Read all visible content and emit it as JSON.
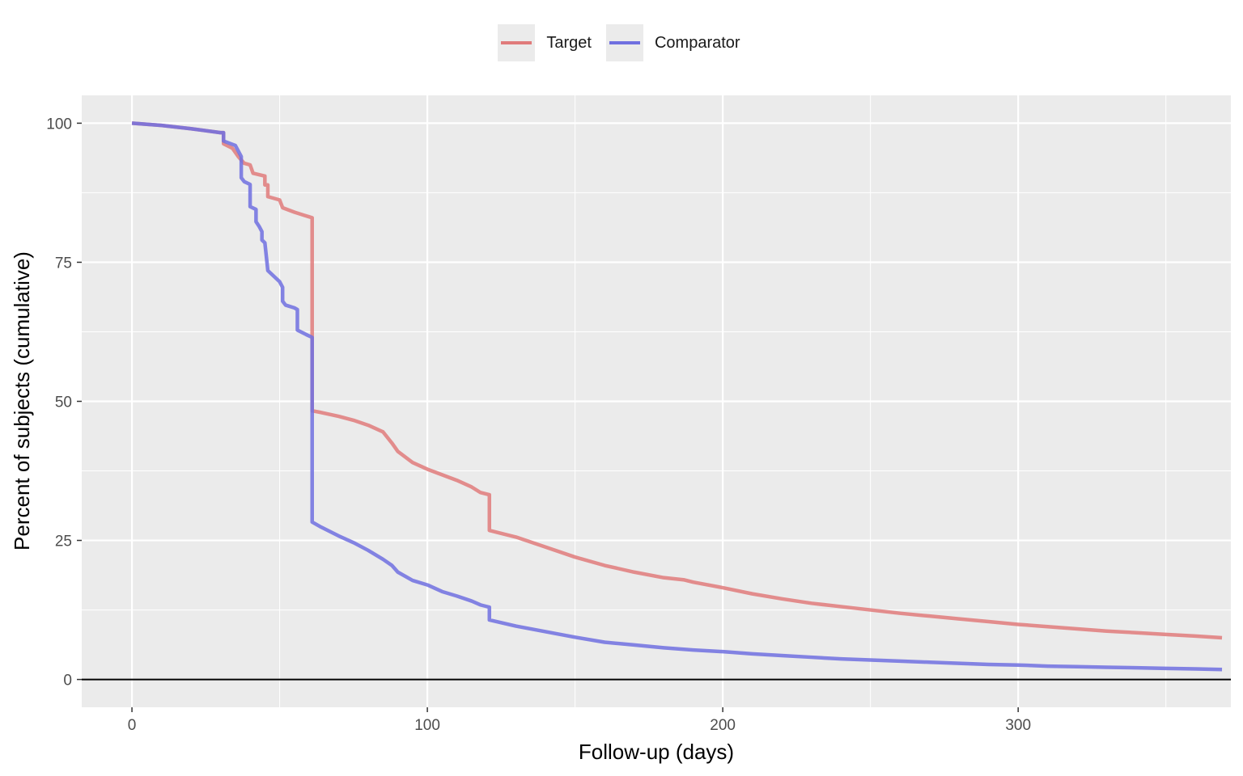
{
  "chart_data": {
    "type": "line",
    "title": "",
    "xlabel": "Follow-up (days)",
    "ylabel": "Percent of subjects (cumulative)",
    "xlim": [
      -17,
      372
    ],
    "ylim": [
      -5,
      105
    ],
    "xticks": [
      0,
      100,
      200,
      300
    ],
    "xtick_labels": [
      "0",
      "100",
      "200",
      "300"
    ],
    "yticks": [
      0,
      25,
      50,
      75,
      100
    ],
    "ytick_labels": [
      "0",
      "25",
      "50",
      "75",
      "100"
    ],
    "grid": true,
    "legend_position": "top",
    "series": [
      {
        "name": "Target",
        "color": "#e07b7b",
        "points": [
          [
            0,
            100
          ],
          [
            10,
            99.6
          ],
          [
            20,
            99
          ],
          [
            30,
            98.3
          ],
          [
            31,
            98.3
          ],
          [
            31,
            96.3
          ],
          [
            34,
            95.5
          ],
          [
            36,
            94
          ],
          [
            38,
            92.8
          ],
          [
            40,
            92.5
          ],
          [
            41,
            91
          ],
          [
            45,
            90.5
          ],
          [
            45,
            88.9
          ],
          [
            46,
            88.9
          ],
          [
            46,
            86.8
          ],
          [
            50,
            86.2
          ],
          [
            51,
            84.8
          ],
          [
            55,
            84
          ],
          [
            58,
            83.5
          ],
          [
            61,
            83
          ],
          [
            61,
            61.5
          ],
          [
            61,
            48.3
          ],
          [
            64,
            48
          ],
          [
            70,
            47.3
          ],
          [
            75,
            46.6
          ],
          [
            80,
            45.7
          ],
          [
            85,
            44.5
          ],
          [
            88,
            42.5
          ],
          [
            90,
            41
          ],
          [
            95,
            39
          ],
          [
            100,
            37.8
          ],
          [
            105,
            36.8
          ],
          [
            110,
            35.8
          ],
          [
            115,
            34.6
          ],
          [
            118,
            33.6
          ],
          [
            121,
            33.2
          ],
          [
            121,
            26.8
          ],
          [
            130,
            25.6
          ],
          [
            140,
            23.8
          ],
          [
            150,
            22
          ],
          [
            160,
            20.5
          ],
          [
            170,
            19.3
          ],
          [
            180,
            18.3
          ],
          [
            187,
            17.9
          ],
          [
            190,
            17.5
          ],
          [
            200,
            16.5
          ],
          [
            210,
            15.4
          ],
          [
            220,
            14.5
          ],
          [
            230,
            13.7
          ],
          [
            240,
            13.1
          ],
          [
            250,
            12.5
          ],
          [
            260,
            11.9
          ],
          [
            270,
            11.4
          ],
          [
            280,
            10.9
          ],
          [
            290,
            10.4
          ],
          [
            300,
            9.9
          ],
          [
            310,
            9.5
          ],
          [
            320,
            9.1
          ],
          [
            330,
            8.7
          ],
          [
            340,
            8.4
          ],
          [
            350,
            8.1
          ],
          [
            360,
            7.8
          ],
          [
            369,
            7.5
          ]
        ]
      },
      {
        "name": "Comparator",
        "color": "#7070e0",
        "points": [
          [
            0,
            100
          ],
          [
            10,
            99.6
          ],
          [
            20,
            99
          ],
          [
            30,
            98.3
          ],
          [
            31,
            98.3
          ],
          [
            31,
            96.8
          ],
          [
            35,
            96
          ],
          [
            37,
            94
          ],
          [
            37,
            90.2
          ],
          [
            38,
            89.5
          ],
          [
            40,
            89
          ],
          [
            40,
            85
          ],
          [
            42,
            84.5
          ],
          [
            42,
            82.3
          ],
          [
            43,
            81.5
          ],
          [
            44,
            80.5
          ],
          [
            44,
            79
          ],
          [
            45,
            78.5
          ],
          [
            46,
            73.5
          ],
          [
            48,
            72.5
          ],
          [
            50,
            71.5
          ],
          [
            51,
            70.5
          ],
          [
            51,
            68
          ],
          [
            52,
            67.3
          ],
          [
            55,
            66.8
          ],
          [
            56,
            66.5
          ],
          [
            56,
            62.8
          ],
          [
            59,
            62
          ],
          [
            61,
            61.5
          ],
          [
            61,
            48.3
          ],
          [
            61,
            28.3
          ],
          [
            64,
            27.4
          ],
          [
            70,
            25.8
          ],
          [
            75,
            24.6
          ],
          [
            80,
            23.2
          ],
          [
            85,
            21.6
          ],
          [
            88,
            20.5
          ],
          [
            90,
            19.3
          ],
          [
            95,
            17.8
          ],
          [
            100,
            17
          ],
          [
            105,
            15.8
          ],
          [
            110,
            15
          ],
          [
            115,
            14.1
          ],
          [
            118,
            13.4
          ],
          [
            121,
            13
          ],
          [
            121,
            10.7
          ],
          [
            130,
            9.6
          ],
          [
            140,
            8.6
          ],
          [
            150,
            7.6
          ],
          [
            160,
            6.7
          ],
          [
            170,
            6.2
          ],
          [
            180,
            5.7
          ],
          [
            190,
            5.3
          ],
          [
            200,
            5
          ],
          [
            210,
            4.6
          ],
          [
            220,
            4.3
          ],
          [
            230,
            4
          ],
          [
            240,
            3.7
          ],
          [
            250,
            3.5
          ],
          [
            260,
            3.3
          ],
          [
            270,
            3.1
          ],
          [
            280,
            2.9
          ],
          [
            290,
            2.7
          ],
          [
            300,
            2.6
          ],
          [
            310,
            2.4
          ],
          [
            320,
            2.3
          ],
          [
            330,
            2.2
          ],
          [
            340,
            2.1
          ],
          [
            350,
            2
          ],
          [
            360,
            1.9
          ],
          [
            369,
            1.8
          ]
        ]
      }
    ]
  }
}
